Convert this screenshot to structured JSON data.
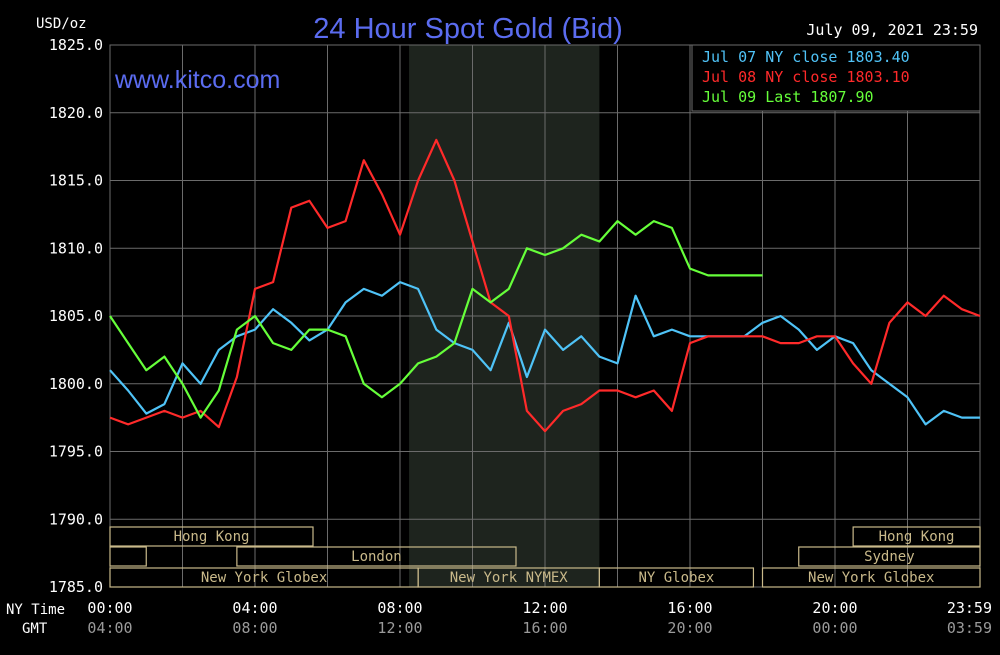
{
  "header": {
    "unit": "USD/oz",
    "title": "24 Hour Spot Gold (Bid)",
    "date": "July 09, 2021 23:59",
    "website": "www.kitco.com"
  },
  "colors": {
    "background": "#000000",
    "grid": "#6b6b6b",
    "title": "#5b6cf0",
    "text": "#ffffff",
    "jul07": "#4fc3f7",
    "jul08": "#ff2a2a",
    "jul09": "#66ff3a",
    "market_box": "#c9b98a",
    "band": "#1e241e"
  },
  "legend": [
    {
      "label": "Jul 07 NY close 1803.40",
      "series": "jul07"
    },
    {
      "label": "Jul 08 NY close 1803.10",
      "series": "jul08"
    },
    {
      "label": "Jul 09 Last 1807.90",
      "series": "jul09"
    }
  ],
  "axes": {
    "ny_time_label": "NY Time",
    "gmt_label": "GMT",
    "ny_ticks": [
      "00:00",
      "04:00",
      "08:00",
      "12:00",
      "16:00",
      "20:00",
      "23:59"
    ],
    "gmt_ticks": [
      "04:00",
      "08:00",
      "12:00",
      "16:00",
      "20:00",
      "00:00",
      "03:59"
    ]
  },
  "markets": [
    {
      "label": "Hong Kong",
      "start": 0.0,
      "end": 5.6,
      "row": 0
    },
    {
      "label": "Hong Kong",
      "start": 20.5,
      "end": 24.0,
      "row": 0
    },
    {
      "label": "",
      "start": 0.0,
      "end": 1.0,
      "row": 1
    },
    {
      "label": "London",
      "start": 3.5,
      "end": 11.2,
      "row": 1
    },
    {
      "label": "Sydney",
      "start": 19.0,
      "end": 24.0,
      "row": 1
    },
    {
      "label": "New York Globex",
      "start": 0.0,
      "end": 8.5,
      "row": 2
    },
    {
      "label": "New York NYMEX",
      "start": 8.5,
      "end": 13.5,
      "row": 2
    },
    {
      "label": "NY Globex",
      "start": 13.5,
      "end": 17.75,
      "row": 2
    },
    {
      "label": "New York Globex",
      "start": 18.0,
      "end": 24.0,
      "row": 2
    }
  ],
  "chart_data": {
    "type": "line",
    "title": "24 Hour Spot Gold (Bid)",
    "ylabel": "USD/oz",
    "xlabel": "NY Time",
    "ylim": [
      1785.0,
      1825.0
    ],
    "xlim": [
      0,
      24
    ],
    "y_ticks": [
      "1825.0",
      "1820.0",
      "1815.0",
      "1810.0",
      "1805.0",
      "1800.0",
      "1795.0",
      "1790.0",
      "1785.0"
    ],
    "shaded_region": [
      8.25,
      13.5
    ],
    "grid": true,
    "legend_position": "top-right",
    "series": [
      {
        "name": "Jul 07 NY close 1803.40",
        "key": "jul07",
        "x": [
          0,
          0.5,
          1,
          1.5,
          2,
          2.5,
          3,
          3.5,
          4,
          4.5,
          5,
          5.5,
          6,
          6.5,
          7,
          7.5,
          8,
          8.5,
          9,
          9.5,
          10,
          10.5,
          11,
          11.5,
          12,
          12.5,
          13,
          13.5,
          14,
          14.5,
          15,
          15.5,
          16,
          16.5,
          17,
          17.5,
          18,
          18.5,
          19,
          19.5,
          20,
          20.5,
          21,
          21.5,
          22,
          22.5,
          23,
          23.5,
          24
        ],
        "values": [
          1801.0,
          1799.5,
          1797.8,
          1798.5,
          1801.5,
          1800.0,
          1802.5,
          1803.5,
          1804.0,
          1805.5,
          1804.5,
          1803.2,
          1804.0,
          1806.0,
          1807.0,
          1806.5,
          1807.5,
          1807.0,
          1804.0,
          1803.0,
          1802.5,
          1801.0,
          1804.5,
          1800.5,
          1804.0,
          1802.5,
          1803.5,
          1802.0,
          1801.5,
          1806.5,
          1803.5,
          1804.0,
          1803.5,
          1803.5,
          1803.5,
          1803.5,
          1804.5,
          1805.0,
          1804.0,
          1802.5,
          1803.5,
          1803.0,
          1801.0,
          1800.0,
          1799.0,
          1797.0,
          1798.0,
          1797.5,
          1797.5
        ]
      },
      {
        "name": "Jul 08 NY close 1803.10",
        "key": "jul08",
        "x": [
          0,
          0.5,
          1,
          1.5,
          2,
          2.5,
          3,
          3.5,
          4,
          4.5,
          5,
          5.5,
          6,
          6.5,
          7,
          7.5,
          8,
          8.5,
          9,
          9.5,
          10,
          10.5,
          11,
          11.5,
          12,
          12.5,
          13,
          13.5,
          14,
          14.5,
          15,
          15.5,
          16,
          16.5,
          17,
          17.5,
          18,
          18.5,
          19,
          19.5,
          20,
          20.5,
          21,
          21.5,
          22,
          22.5,
          23,
          23.5,
          24
        ],
        "values": [
          1797.5,
          1797.0,
          1797.5,
          1798.0,
          1797.5,
          1798.0,
          1796.8,
          1800.5,
          1807.0,
          1807.5,
          1813.0,
          1813.5,
          1811.5,
          1812.0,
          1816.5,
          1814.0,
          1811.0,
          1815.0,
          1818.0,
          1815.0,
          1810.5,
          1806.0,
          1805.0,
          1798.0,
          1796.5,
          1798.0,
          1798.5,
          1799.5,
          1799.5,
          1799.0,
          1799.5,
          1798.0,
          1803.0,
          1803.5,
          1803.5,
          1803.5,
          1803.5,
          1803.0,
          1803.0,
          1803.5,
          1803.5,
          1801.5,
          1800.0,
          1804.5,
          1806.0,
          1805.0,
          1806.5,
          1805.5,
          1805.0
        ]
      },
      {
        "name": "Jul 09 Last 1807.90",
        "key": "jul09",
        "x": [
          0,
          0.5,
          1,
          1.5,
          2,
          2.5,
          3,
          3.5,
          4,
          4.5,
          5,
          5.5,
          6,
          6.5,
          7,
          7.5,
          8,
          8.5,
          9,
          9.5,
          10,
          10.5,
          11,
          11.5,
          12,
          12.5,
          13,
          13.5,
          14,
          14.5,
          15,
          15.5,
          16,
          16.5,
          17,
          17.5,
          18
        ],
        "values": [
          1805.0,
          1803.0,
          1801.0,
          1802.0,
          1800.0,
          1797.5,
          1799.5,
          1804.0,
          1805.0,
          1803.0,
          1802.5,
          1804.0,
          1804.0,
          1803.5,
          1800.0,
          1799.0,
          1800.0,
          1801.5,
          1802.0,
          1803.0,
          1807.0,
          1806.0,
          1807.0,
          1810.0,
          1809.5,
          1810.0,
          1811.0,
          1810.5,
          1812.0,
          1811.0,
          1812.0,
          1811.5,
          1808.5,
          1808.0,
          1808.0,
          1808.0,
          1808.0
        ]
      }
    ]
  }
}
